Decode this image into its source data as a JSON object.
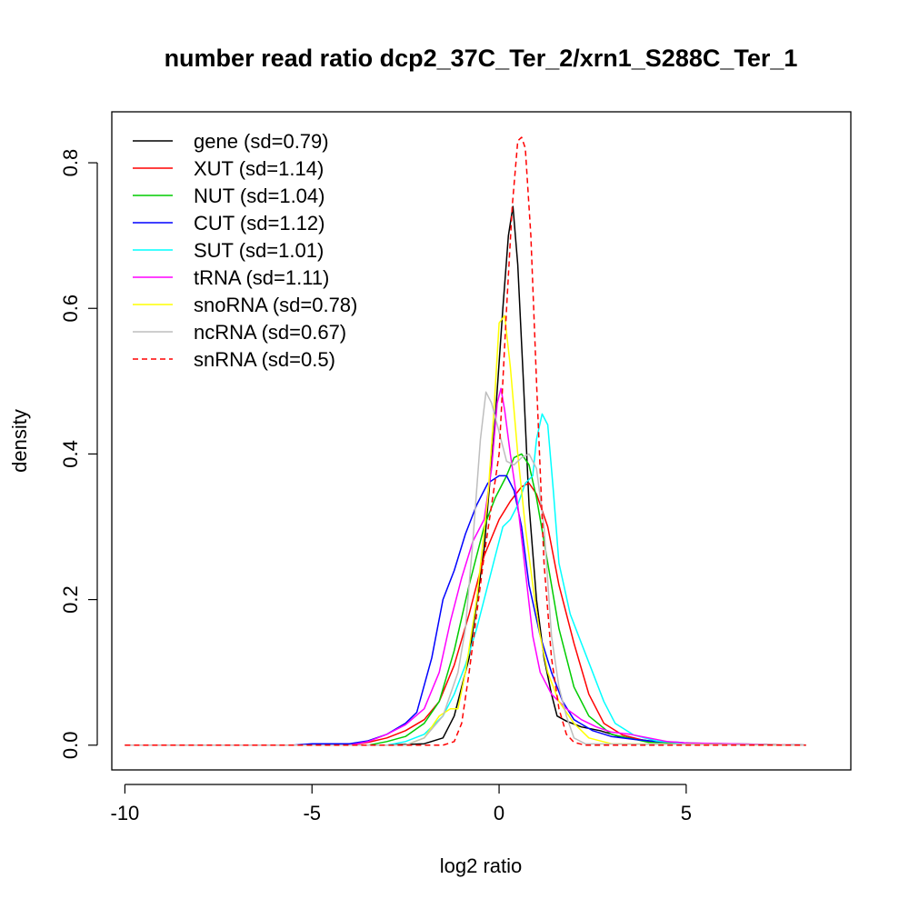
{
  "chart_data": {
    "type": "line",
    "title": "number read ratio dcp2_37C_Ter_2/xrn1_S288C_Ter_1",
    "xlabel": "log2 ratio",
    "ylabel": "density",
    "xlim": [
      -10.35,
      9.4
    ],
    "ylim": [
      -0.034,
      0.87
    ],
    "x_ticks": [
      -10,
      -5,
      0,
      5
    ],
    "x_tick_labels": [
      "-10",
      "-5",
      "0",
      "5"
    ],
    "y_ticks": [
      0.0,
      0.2,
      0.4,
      0.6,
      0.8
    ],
    "y_tick_labels": [
      "0.0",
      "0.2",
      "0.4",
      "0.6",
      "0.8"
    ],
    "legend_position": "top-left",
    "grid": false,
    "series": [
      {
        "name": "gene (sd=0.79)",
        "color": "#000000",
        "dash": false,
        "points": [
          [
            -10,
            0
          ],
          [
            -3,
            0
          ],
          [
            -2,
            0.002
          ],
          [
            -1.5,
            0.01
          ],
          [
            -1.2,
            0.04
          ],
          [
            -0.8,
            0.12
          ],
          [
            -0.4,
            0.27
          ],
          [
            -0.1,
            0.45
          ],
          [
            0.1,
            0.6
          ],
          [
            0.25,
            0.7
          ],
          [
            0.37,
            0.74
          ],
          [
            0.5,
            0.66
          ],
          [
            0.65,
            0.5
          ],
          [
            0.8,
            0.33
          ],
          [
            1,
            0.2
          ],
          [
            1.2,
            0.12
          ],
          [
            1.4,
            0.07
          ],
          [
            1.55,
            0.04
          ],
          [
            1.8,
            0.033
          ],
          [
            2.2,
            0.025
          ],
          [
            2.7,
            0.02
          ],
          [
            3.2,
            0.012
          ],
          [
            4,
            0.006
          ],
          [
            5,
            0.002
          ],
          [
            8.2,
            0
          ]
        ]
      },
      {
        "name": "XUT (sd=1.14)",
        "color": "#ff0000",
        "dash": false,
        "points": [
          [
            -10,
            0
          ],
          [
            -4,
            0
          ],
          [
            -3.5,
            0.004
          ],
          [
            -3,
            0.01
          ],
          [
            -2.5,
            0.02
          ],
          [
            -2,
            0.035
          ],
          [
            -1.6,
            0.06
          ],
          [
            -1.2,
            0.11
          ],
          [
            -0.8,
            0.18
          ],
          [
            -0.4,
            0.26
          ],
          [
            0,
            0.31
          ],
          [
            0.3,
            0.335
          ],
          [
            0.6,
            0.355
          ],
          [
            0.8,
            0.36
          ],
          [
            1,
            0.345
          ],
          [
            1.3,
            0.3
          ],
          [
            1.6,
            0.22
          ],
          [
            2,
            0.14
          ],
          [
            2.4,
            0.07
          ],
          [
            2.8,
            0.03
          ],
          [
            3.3,
            0.014
          ],
          [
            4,
            0.005
          ],
          [
            5,
            0.002
          ],
          [
            8.2,
            0
          ]
        ]
      },
      {
        "name": "NUT (sd=1.04)",
        "color": "#00cc00",
        "dash": false,
        "points": [
          [
            -10,
            0
          ],
          [
            -3.5,
            0
          ],
          [
            -3,
            0.005
          ],
          [
            -2.5,
            0.012
          ],
          [
            -2,
            0.03
          ],
          [
            -1.6,
            0.06
          ],
          [
            -1.2,
            0.13
          ],
          [
            -0.8,
            0.22
          ],
          [
            -0.4,
            0.3
          ],
          [
            -0.1,
            0.34
          ],
          [
            0.2,
            0.37
          ],
          [
            0.4,
            0.395
          ],
          [
            0.6,
            0.4
          ],
          [
            0.8,
            0.385
          ],
          [
            1,
            0.34
          ],
          [
            1.3,
            0.25
          ],
          [
            1.6,
            0.16
          ],
          [
            2,
            0.08
          ],
          [
            2.4,
            0.04
          ],
          [
            3,
            0.015
          ],
          [
            4,
            0.004
          ],
          [
            8.2,
            0
          ]
        ]
      },
      {
        "name": "CUT (sd=1.12)",
        "color": "#0000ff",
        "dash": false,
        "points": [
          [
            -10,
            0
          ],
          [
            -5.5,
            0
          ],
          [
            -5,
            0.002
          ],
          [
            -4,
            0.002
          ],
          [
            -3.5,
            0.006
          ],
          [
            -3,
            0.015
          ],
          [
            -2.5,
            0.03
          ],
          [
            -2.2,
            0.045
          ],
          [
            -1.8,
            0.12
          ],
          [
            -1.5,
            0.2
          ],
          [
            -1.2,
            0.24
          ],
          [
            -0.9,
            0.29
          ],
          [
            -0.6,
            0.33
          ],
          [
            -0.3,
            0.36
          ],
          [
            0,
            0.37
          ],
          [
            0.2,
            0.37
          ],
          [
            0.4,
            0.35
          ],
          [
            0.6,
            0.3
          ],
          [
            0.8,
            0.22
          ],
          [
            1.1,
            0.15
          ],
          [
            1.4,
            0.1
          ],
          [
            1.7,
            0.06
          ],
          [
            2,
            0.035
          ],
          [
            2.5,
            0.02
          ],
          [
            3,
            0.012
          ],
          [
            3.6,
            0.008
          ],
          [
            4.2,
            0.005
          ],
          [
            4.8,
            0.004
          ],
          [
            5.2,
            0.002
          ],
          [
            8.2,
            0
          ]
        ]
      },
      {
        "name": "SUT (sd=1.01)",
        "color": "#00ffff",
        "dash": false,
        "points": [
          [
            -10,
            0
          ],
          [
            -3,
            0
          ],
          [
            -2.5,
            0.005
          ],
          [
            -2,
            0.015
          ],
          [
            -1.5,
            0.04
          ],
          [
            -1.2,
            0.07
          ],
          [
            -0.9,
            0.11
          ],
          [
            -0.6,
            0.16
          ],
          [
            -0.3,
            0.22
          ],
          [
            -0.1,
            0.26
          ],
          [
            0.1,
            0.3
          ],
          [
            0.3,
            0.31
          ],
          [
            0.5,
            0.33
          ],
          [
            0.7,
            0.36
          ],
          [
            0.9,
            0.37
          ],
          [
            1,
            0.42
          ],
          [
            1.15,
            0.455
          ],
          [
            1.3,
            0.44
          ],
          [
            1.45,
            0.35
          ],
          [
            1.6,
            0.25
          ],
          [
            1.9,
            0.18
          ],
          [
            2.2,
            0.14
          ],
          [
            2.5,
            0.1
          ],
          [
            2.8,
            0.06
          ],
          [
            3.1,
            0.03
          ],
          [
            3.6,
            0.014
          ],
          [
            4.2,
            0.006
          ],
          [
            5,
            0.002
          ],
          [
            8.2,
            0
          ]
        ]
      },
      {
        "name": "tRNA (sd=1.11)",
        "color": "#ff00ff",
        "dash": false,
        "points": [
          [
            -10,
            0
          ],
          [
            -4,
            0
          ],
          [
            -3.5,
            0.005
          ],
          [
            -3,
            0.015
          ],
          [
            -2.5,
            0.028
          ],
          [
            -2,
            0.05
          ],
          [
            -1.6,
            0.1
          ],
          [
            -1.3,
            0.17
          ],
          [
            -1,
            0.23
          ],
          [
            -0.7,
            0.28
          ],
          [
            -0.4,
            0.31
          ],
          [
            -0.2,
            0.38
          ],
          [
            -0.05,
            0.47
          ],
          [
            0.05,
            0.49
          ],
          [
            0.15,
            0.46
          ],
          [
            0.3,
            0.4
          ],
          [
            0.5,
            0.33
          ],
          [
            0.7,
            0.24
          ],
          [
            0.9,
            0.15
          ],
          [
            1.1,
            0.1
          ],
          [
            1.4,
            0.07
          ],
          [
            1.8,
            0.05
          ],
          [
            2.2,
            0.035
          ],
          [
            2.6,
            0.025
          ],
          [
            3,
            0.018
          ],
          [
            3.5,
            0.015
          ],
          [
            4,
            0.01
          ],
          [
            4.5,
            0.005
          ],
          [
            5,
            0.003
          ],
          [
            8.2,
            0
          ]
        ]
      },
      {
        "name": "snoRNA (sd=0.78)",
        "color": "#ffff00",
        "dash": false,
        "points": [
          [
            -10,
            0
          ],
          [
            -2.5,
            0
          ],
          [
            -2,
            0.01
          ],
          [
            -1.6,
            0.04
          ],
          [
            -1.3,
            0.05
          ],
          [
            -1.1,
            0.05
          ],
          [
            -0.9,
            0.1
          ],
          [
            -0.6,
            0.2
          ],
          [
            -0.3,
            0.34
          ],
          [
            -0.15,
            0.45
          ],
          [
            0,
            0.58
          ],
          [
            0.15,
            0.59
          ],
          [
            0.3,
            0.52
          ],
          [
            0.5,
            0.4
          ],
          [
            0.7,
            0.3
          ],
          [
            0.9,
            0.22
          ],
          [
            1.1,
            0.15
          ],
          [
            1.3,
            0.1
          ],
          [
            1.6,
            0.06
          ],
          [
            2,
            0.03
          ],
          [
            2.4,
            0.01
          ],
          [
            3,
            0.002
          ],
          [
            8.2,
            0
          ]
        ]
      },
      {
        "name": "ncRNA (sd=0.67)",
        "color": "#bebebe",
        "dash": false,
        "points": [
          [
            -10,
            0
          ],
          [
            -2.5,
            0
          ],
          [
            -2,
            0.01
          ],
          [
            -1.5,
            0.04
          ],
          [
            -1.1,
            0.1
          ],
          [
            -0.9,
            0.16
          ],
          [
            -0.7,
            0.28
          ],
          [
            -0.5,
            0.42
          ],
          [
            -0.35,
            0.485
          ],
          [
            -0.2,
            0.47
          ],
          [
            0,
            0.43
          ],
          [
            0.2,
            0.39
          ],
          [
            0.4,
            0.385
          ],
          [
            0.6,
            0.395
          ],
          [
            0.8,
            0.4
          ],
          [
            1,
            0.38
          ],
          [
            1.2,
            0.3
          ],
          [
            1.4,
            0.15
          ],
          [
            1.6,
            0.08
          ],
          [
            1.8,
            0.04
          ],
          [
            2,
            0.01
          ],
          [
            2.3,
            0.002
          ],
          [
            8.2,
            0
          ]
        ]
      },
      {
        "name": "snRNA (sd=0.5)",
        "color": "#ff0000",
        "dash": true,
        "points": [
          [
            -10,
            0
          ],
          [
            -1.5,
            0
          ],
          [
            -1.2,
            0.005
          ],
          [
            -1,
            0.03
          ],
          [
            -0.8,
            0.1
          ],
          [
            -0.6,
            0.18
          ],
          [
            -0.4,
            0.26
          ],
          [
            -0.2,
            0.33
          ],
          [
            0,
            0.4
          ],
          [
            0.2,
            0.6
          ],
          [
            0.35,
            0.74
          ],
          [
            0.5,
            0.83
          ],
          [
            0.6,
            0.835
          ],
          [
            0.7,
            0.82
          ],
          [
            0.85,
            0.7
          ],
          [
            1,
            0.5
          ],
          [
            1.2,
            0.25
          ],
          [
            1.4,
            0.12
          ],
          [
            1.6,
            0.05
          ],
          [
            1.8,
            0.015
          ],
          [
            2,
            0.004
          ],
          [
            2.3,
            0
          ],
          [
            8.2,
            0
          ]
        ]
      }
    ]
  }
}
